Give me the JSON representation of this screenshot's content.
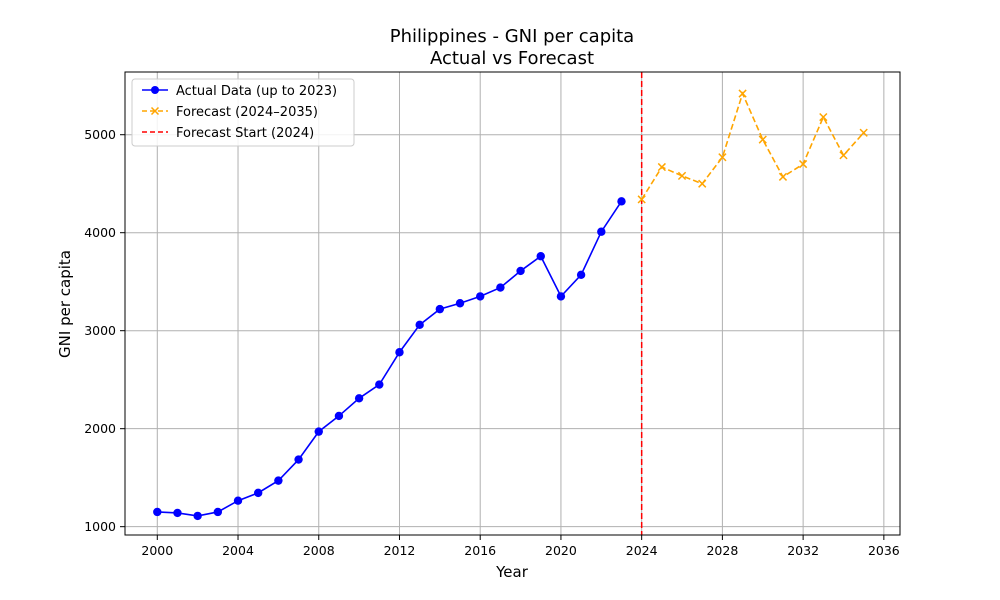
{
  "chart_data": {
    "type": "line",
    "title": "Philippines - GNI per capita",
    "subtitle": "Actual vs Forecast",
    "xlabel": "Year",
    "ylabel": "GNI per capita",
    "xlim": [
      1998.4,
      2036.8
    ],
    "ylim": [
      915,
      5640
    ],
    "xticks": [
      2000,
      2004,
      2008,
      2012,
      2016,
      2020,
      2024,
      2028,
      2032,
      2036
    ],
    "yticks": [
      1000,
      2000,
      3000,
      4000,
      5000
    ],
    "grid": true,
    "legend_position": "top-left",
    "series": [
      {
        "name": "Actual Data (up to 2023)",
        "color": "#0000ff",
        "line_style": "solid",
        "marker": "circle",
        "x": [
          2000,
          2001,
          2002,
          2003,
          2004,
          2005,
          2006,
          2007,
          2008,
          2009,
          2010,
          2011,
          2012,
          2013,
          2014,
          2015,
          2016,
          2017,
          2018,
          2019,
          2020,
          2021,
          2022,
          2023
        ],
        "y": [
          1150,
          1140,
          1110,
          1150,
          1265,
          1345,
          1470,
          1685,
          1970,
          2130,
          2310,
          2450,
          2780,
          3060,
          3220,
          3280,
          3350,
          3440,
          3610,
          3760,
          3350,
          3570,
          4010,
          4320
        ]
      },
      {
        "name": "Forecast (2024–2035)",
        "color": "#ffa500",
        "line_style": "dashed",
        "marker": "x",
        "x": [
          2024,
          2025,
          2026,
          2027,
          2028,
          2029,
          2030,
          2031,
          2032,
          2033,
          2034,
          2035
        ],
        "y": [
          4340,
          4670,
          4580,
          4500,
          4770,
          5420,
          4950,
          4570,
          4700,
          5180,
          4790,
          5020
        ]
      }
    ],
    "vline": {
      "name": "Forecast Start (2024)",
      "x": 2024,
      "color": "#ff0000",
      "line_style": "dashed"
    }
  }
}
